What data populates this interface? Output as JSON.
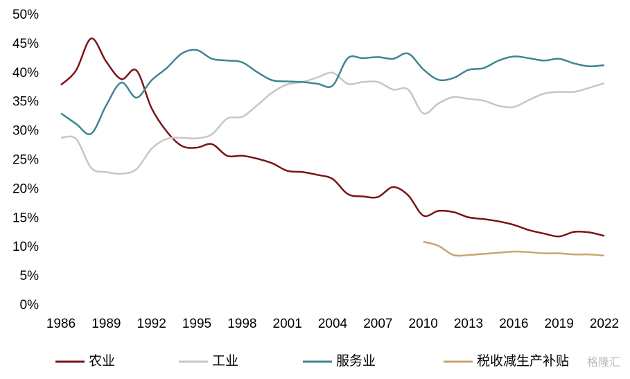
{
  "chart_data": {
    "type": "line",
    "x": [
      1986,
      1987,
      1988,
      1989,
      1990,
      1991,
      1992,
      1993,
      1994,
      1995,
      1996,
      1997,
      1998,
      1999,
      2000,
      2001,
      2002,
      2003,
      2004,
      2005,
      2006,
      2007,
      2008,
      2009,
      2010,
      2011,
      2012,
      2013,
      2014,
      2015,
      2016,
      2017,
      2018,
      2019,
      2020,
      2021,
      2022
    ],
    "series": [
      {
        "name": "农业",
        "color": "#7b1416",
        "values": [
          38,
          40.5,
          46,
          42,
          39,
          40.5,
          34,
          30,
          27.5,
          27.2,
          27.8,
          25.8,
          25.8,
          25.3,
          24.5,
          23.2,
          23,
          22.5,
          21.8,
          19.2,
          18.8,
          18.7,
          20.4,
          19,
          15.5,
          16.3,
          16.1,
          15.2,
          14.9,
          14.5,
          13.9,
          13,
          12.4,
          11.9,
          12.7,
          12.6,
          12
        ]
      },
      {
        "name": "工业",
        "color": "#c8c6c0",
        "values": [
          28.9,
          28.7,
          23.7,
          23,
          22.7,
          23.5,
          27,
          28.7,
          28.9,
          28.8,
          29.5,
          32.2,
          32.5,
          34.5,
          36.7,
          38.1,
          38.5,
          39.3,
          40.1,
          38.2,
          38.5,
          38.5,
          37.2,
          37.2,
          33.1,
          34.8,
          35.9,
          35.6,
          35.3,
          34.4,
          34.2,
          35.4,
          36.5,
          36.8,
          36.8,
          37.5,
          38.3
        ]
      },
      {
        "name": "服务业",
        "color": "#3d8593",
        "values": [
          33.1,
          31.3,
          29.6,
          34.5,
          38.4,
          35.8,
          38.8,
          40.9,
          43.4,
          44,
          42.5,
          42.2,
          41.9,
          40.2,
          38.8,
          38.6,
          38.5,
          38.2,
          37.9,
          42.6,
          42.6,
          42.8,
          42.5,
          43.4,
          40.7,
          38.9,
          39.2,
          40.6,
          40.9,
          42.2,
          42.9,
          42.6,
          42.2,
          42.5,
          41.7,
          41.2,
          41.4
        ]
      },
      {
        "name": "税收减生产补贴",
        "color": "#c9a56e",
        "values": [
          null,
          null,
          null,
          null,
          null,
          null,
          null,
          null,
          null,
          null,
          null,
          null,
          null,
          null,
          null,
          null,
          null,
          null,
          null,
          null,
          null,
          null,
          null,
          null,
          11,
          10.3,
          8.7,
          8.7,
          8.9,
          9.1,
          9.3,
          9.2,
          9.0,
          9.0,
          8.8,
          8.8,
          8.6
        ]
      }
    ],
    "xlim": [
      1986,
      2022
    ],
    "xticks": [
      1986,
      1989,
      1992,
      1995,
      1998,
      2001,
      2004,
      2007,
      2010,
      2013,
      2016,
      2019,
      2022
    ],
    "ylim": [
      0,
      50
    ],
    "yticks": [
      {
        "value": 0,
        "label": "0%"
      },
      {
        "value": 5,
        "label": "5%"
      },
      {
        "value": 10,
        "label": "10%"
      },
      {
        "value": 15,
        "label": "15%"
      },
      {
        "value": 20,
        "label": "20%"
      },
      {
        "value": 25,
        "label": "25%"
      },
      {
        "value": 30,
        "label": "30%"
      },
      {
        "value": 35,
        "label": "35%"
      },
      {
        "value": 40,
        "label": "40%"
      },
      {
        "value": 45,
        "label": "45%"
      },
      {
        "value": 50,
        "label": "50%"
      }
    ],
    "grid": false,
    "legend": "bottom"
  },
  "watermark": "格隆汇"
}
